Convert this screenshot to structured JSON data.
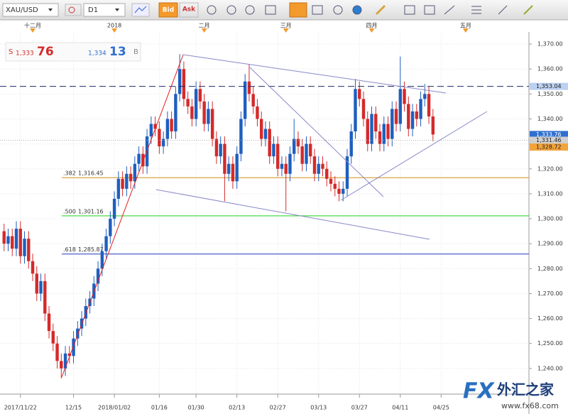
{
  "toolbar": {
    "symbol": "XAU/USD",
    "timeframe": "D1",
    "bid_button": "Bid",
    "ask_button": "Ask"
  },
  "quote": {
    "sell_prefix": "S",
    "sell_small": "1,333",
    "sell_big": "76",
    "buy_small": "1,334",
    "buy_big": "13",
    "buy_suffix": "B"
  },
  "watermark": {
    "brand": "FX",
    "name": "外汇之家",
    "url": "www.fx68.com"
  },
  "chart_data": {
    "type": "candlestick",
    "up_color": "#1f5fbf",
    "down_color": "#d42a2a",
    "grid": true,
    "open": [
      1295,
      1290,
      1293,
      1288,
      1296,
      1285,
      1292,
      1283,
      1278,
      1270,
      1275,
      1262,
      1255,
      1250,
      1243,
      1240,
      1246,
      1245,
      1252,
      1256,
      1260,
      1265,
      1268,
      1274,
      1280,
      1287,
      1293,
      1300,
      1308,
      1316,
      1312,
      1318,
      1315,
      1322,
      1326,
      1321,
      1333,
      1338,
      1336,
      1329,
      1332,
      1340,
      1335,
      1350,
      1360,
      1348,
      1345,
      1340,
      1352,
      1347,
      1338,
      1344,
      1332,
      1325,
      1330,
      1318,
      1322,
      1315,
      1326,
      1340,
      1355,
      1350,
      1345,
      1340,
      1332,
      1336,
      1325,
      1330,
      1320,
      1322,
      1318,
      1326,
      1332,
      1329,
      1322,
      1330,
      1325,
      1318,
      1322,
      1320,
      1316,
      1314,
      1312,
      1310,
      1312,
      1325,
      1335,
      1352,
      1348,
      1340,
      1330,
      1342,
      1335,
      1330,
      1338,
      1332,
      1344,
      1338,
      1352,
      1346,
      1336,
      1343,
      1340,
      1348,
      1350,
      1341
    ],
    "high": [
      1298,
      1296,
      1296,
      1299,
      1299,
      1295,
      1295,
      1286,
      1281,
      1278,
      1278,
      1265,
      1258,
      1253,
      1246,
      1249,
      1249,
      1255,
      1259,
      1263,
      1268,
      1271,
      1277,
      1283,
      1290,
      1296,
      1303,
      1311,
      1319,
      1319,
      1321,
      1321,
      1325,
      1329,
      1329,
      1336,
      1341,
      1341,
      1339,
      1335,
      1343,
      1343,
      1353,
      1366,
      1363,
      1351,
      1348,
      1355,
      1355,
      1350,
      1347,
      1347,
      1335,
      1333,
      1333,
      1325,
      1325,
      1329,
      1343,
      1358,
      1362,
      1353,
      1348,
      1343,
      1339,
      1339,
      1333,
      1333,
      1325,
      1325,
      1329,
      1340,
      1335,
      1332,
      1333,
      1333,
      1328,
      1325,
      1325,
      1323,
      1319,
      1317,
      1315,
      1315,
      1328,
      1338,
      1356,
      1355,
      1351,
      1343,
      1345,
      1345,
      1338,
      1341,
      1341,
      1347,
      1347,
      1365,
      1355,
      1349,
      1346,
      1346,
      1351,
      1354,
      1353,
      1344
    ],
    "low": [
      1287,
      1287,
      1285,
      1285,
      1282,
      1282,
      1280,
      1275,
      1267,
      1267,
      1259,
      1252,
      1247,
      1240,
      1236,
      1237,
      1242,
      1242,
      1249,
      1253,
      1257,
      1262,
      1265,
      1271,
      1277,
      1284,
      1290,
      1297,
      1305,
      1309,
      1309,
      1312,
      1312,
      1319,
      1318,
      1318,
      1330,
      1333,
      1326,
      1326,
      1329,
      1332,
      1332,
      1347,
      1345,
      1342,
      1337,
      1337,
      1344,
      1335,
      1335,
      1329,
      1322,
      1322,
      1307,
      1315,
      1312,
      1312,
      1323,
      1337,
      1347,
      1342,
      1337,
      1329,
      1329,
      1322,
      1322,
      1317,
      1317,
      1303,
      1315,
      1323,
      1326,
      1319,
      1319,
      1322,
      1315,
      1315,
      1317,
      1313,
      1311,
      1309,
      1307,
      1307,
      1309,
      1322,
      1332,
      1345,
      1337,
      1327,
      1327,
      1332,
      1327,
      1327,
      1329,
      1329,
      1335,
      1335,
      1343,
      1333,
      1333,
      1337,
      1337,
      1345,
      1338,
      1331
    ],
    "close": [
      1290,
      1293,
      1288,
      1296,
      1285,
      1292,
      1283,
      1278,
      1270,
      1275,
      1262,
      1255,
      1250,
      1243,
      1240,
      1246,
      1245,
      1252,
      1256,
      1260,
      1265,
      1268,
      1274,
      1280,
      1287,
      1293,
      1300,
      1308,
      1316,
      1312,
      1318,
      1315,
      1322,
      1326,
      1321,
      1333,
      1338,
      1336,
      1329,
      1332,
      1340,
      1335,
      1350,
      1360,
      1348,
      1345,
      1340,
      1352,
      1347,
      1338,
      1344,
      1332,
      1325,
      1330,
      1318,
      1322,
      1315,
      1326,
      1340,
      1355,
      1350,
      1345,
      1340,
      1332,
      1336,
      1325,
      1330,
      1320,
      1322,
      1318,
      1326,
      1332,
      1329,
      1322,
      1330,
      1325,
      1318,
      1322,
      1320,
      1316,
      1314,
      1312,
      1310,
      1312,
      1325,
      1335,
      1352,
      1348,
      1340,
      1330,
      1342,
      1335,
      1330,
      1338,
      1332,
      1344,
      1338,
      1352,
      1346,
      1336,
      1343,
      1340,
      1348,
      1350,
      1341,
      1333.76
    ],
    "xlim": [
      -1,
      128.5
    ],
    "xticks": [
      {
        "value": 4,
        "label": "2017/11/22"
      },
      {
        "value": 17,
        "label": "12/15"
      },
      {
        "value": 27,
        "label": "2018/01/02"
      },
      {
        "value": 38,
        "label": "01/16"
      },
      {
        "value": 47,
        "label": "01/30"
      },
      {
        "value": 57,
        "label": "02/13"
      },
      {
        "value": 67,
        "label": "02/27"
      },
      {
        "value": 77,
        "label": "03/13"
      },
      {
        "value": 87,
        "label": "03/27"
      },
      {
        "value": 97,
        "label": "04/11"
      },
      {
        "value": 107,
        "label": "04/25"
      }
    ],
    "top_xticks": [
      {
        "value": 7,
        "label": "十二月"
      },
      {
        "value": 27,
        "label": "2018"
      },
      {
        "value": 49,
        "label": "二月"
      },
      {
        "value": 69,
        "label": "三月"
      },
      {
        "value": 90,
        "label": "四月"
      },
      {
        "value": 113,
        "label": "五月"
      }
    ],
    "ylim": [
      1230,
      1374
    ],
    "yticks": [
      {
        "value": 1240,
        "label": "1,240.00"
      },
      {
        "value": 1250,
        "label": "1,250.00"
      },
      {
        "value": 1260,
        "label": "1,260.00"
      },
      {
        "value": 1270,
        "label": "1,270.00"
      },
      {
        "value": 1280,
        "label": "1,280.00"
      },
      {
        "value": 1290,
        "label": "1,290.00"
      },
      {
        "value": 1300,
        "label": "1,300.00"
      },
      {
        "value": 1310,
        "label": "1,310.00"
      },
      {
        "value": 1320,
        "label": "1,320.00"
      },
      {
        "value": 1330,
        "label": "1,330.00"
      },
      {
        "value": 1340,
        "label": "1,340.00"
      },
      {
        "value": 1350,
        "label": "1,350.00"
      },
      {
        "value": 1360,
        "label": "1,360.00"
      },
      {
        "value": 1370,
        "label": "1,370.00"
      }
    ],
    "levels": [
      {
        "ratio": ".382",
        "value": 1316.45,
        "label": "1,316.45",
        "color": "#d9a441"
      },
      {
        "ratio": ".500",
        "value": 1301.16,
        "label": "1,301.16",
        "color": "#33d633"
      },
      {
        "ratio": ".618",
        "value": 1285.87,
        "label": "1,285.87",
        "color": "#3b4fc4"
      }
    ],
    "price_markers": [
      {
        "value": 1353.04,
        "label": "1,353.04",
        "color": "#bcd0f0",
        "line": "dashed",
        "line_color": "#1a2a6a"
      },
      {
        "value": 1333.76,
        "label": "1,333.76",
        "color": "#2f6fd0"
      },
      {
        "value": 1331.46,
        "label": "1,331.46",
        "color": "#d0d0d0",
        "line": "dotted",
        "line_color": "#b0b0b0"
      },
      {
        "value": 1328.72,
        "label": "1,328.72",
        "color": "#f2a33a"
      }
    ]
  }
}
